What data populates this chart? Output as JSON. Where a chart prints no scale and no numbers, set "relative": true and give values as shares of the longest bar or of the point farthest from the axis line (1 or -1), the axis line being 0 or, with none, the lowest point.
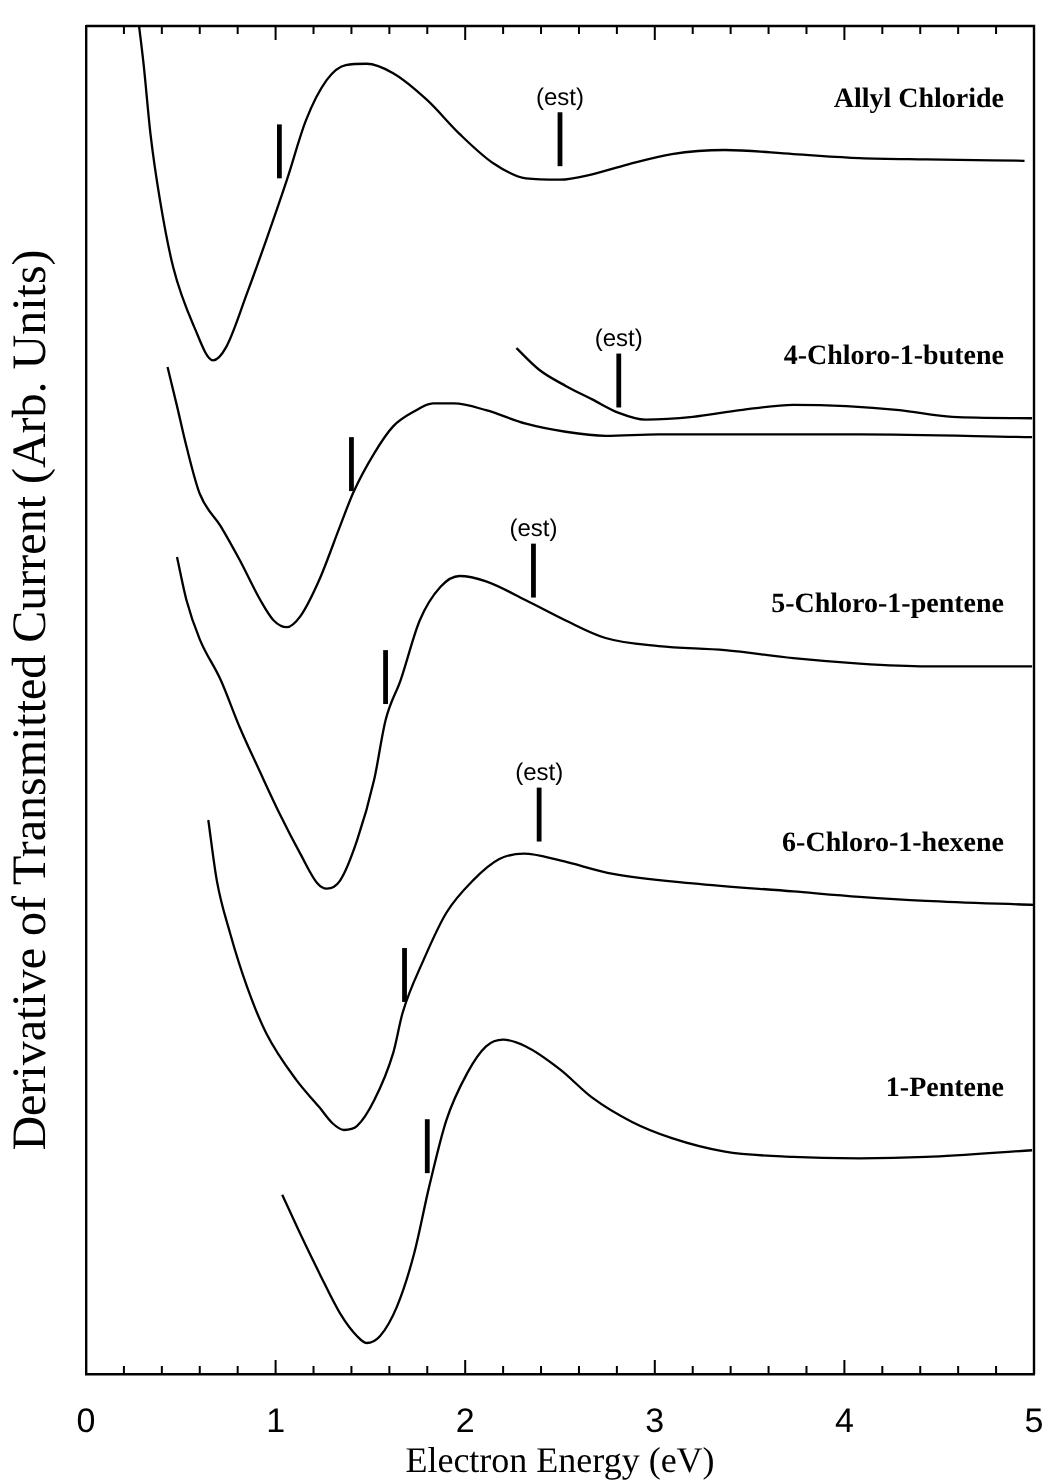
{
  "chart_data": {
    "type": "line",
    "relative": true,
    "xlabel": "Electron Energy (eV)",
    "ylabel": "Derivative of Transmitted Current (Arb. Units)",
    "xlim": [
      0,
      5
    ],
    "xticks": [
      0,
      {
        "value": 0.2,
        "label": null
      },
      {
        "value": 0.4,
        "label": null
      },
      {
        "value": 0.6,
        "label": null
      },
      {
        "value": 0.8,
        "label": null
      },
      1,
      {
        "value": 1.2,
        "label": null
      },
      {
        "value": 1.4,
        "label": null
      },
      {
        "value": 1.6,
        "label": null
      },
      {
        "value": 1.8,
        "label": null
      },
      2,
      {
        "value": 2.2,
        "label": null
      },
      {
        "value": 2.4,
        "label": null
      },
      {
        "value": 2.6,
        "label": null
      },
      {
        "value": 2.8,
        "label": null
      },
      3,
      {
        "value": 3.2,
        "label": null
      },
      {
        "value": 3.4,
        "label": null
      },
      {
        "value": 3.6,
        "label": null
      },
      {
        "value": 3.8,
        "label": null
      },
      4,
      {
        "value": 4.2,
        "label": null
      },
      {
        "value": 4.4,
        "label": null
      },
      {
        "value": 4.6,
        "label": null
      },
      {
        "value": 4.8,
        "label": null
      },
      5
    ],
    "series": [
      {
        "name": "Allyl Chloride",
        "color": "#000000",
        "x": [
          0.28,
          0.305,
          0.34,
          0.39,
          0.46,
          0.57,
          0.67,
          0.74,
          0.85,
          0.95,
          1.06,
          1.16,
          1.27,
          1.37,
          1.48,
          1.62,
          1.8,
          1.97,
          2.15,
          2.32,
          2.5,
          2.67,
          2.85,
          3.09,
          3.37,
          3.73,
          4.08,
          4.43,
          4.95
        ],
        "values": [
          1.0,
          0.97,
          0.92,
          0.871,
          0.821,
          0.777,
          0.752,
          0.762,
          0.802,
          0.841,
          0.886,
          0.93,
          0.96,
          0.971,
          0.972,
          0.965,
          0.945,
          0.92,
          0.898,
          0.887,
          0.886,
          0.89,
          0.897,
          0.905,
          0.908,
          0.905,
          0.902,
          0.901,
          0.9
        ]
      },
      {
        "name": "4-Chloro-1-butene",
        "color": "#000000",
        "x": [
          0.43,
          0.48,
          0.53,
          0.6,
          0.71,
          0.81,
          0.92,
          0.99,
          1.06,
          1.13,
          1.23,
          1.34,
          1.41,
          1.52,
          1.62,
          1.73,
          1.83,
          1.94,
          2.11,
          2.32,
          2.53,
          2.74,
          3.02,
          3.37,
          4.08,
          4.99
        ],
        "values": [
          0.747,
          0.718,
          0.688,
          0.653,
          0.629,
          0.604,
          0.574,
          0.559,
          0.554,
          0.562,
          0.589,
          0.629,
          0.654,
          0.683,
          0.703,
          0.714,
          0.72,
          0.72,
          0.715,
          0.705,
          0.699,
          0.696,
          0.697,
          0.697,
          0.697,
          0.695
        ]
      },
      {
        "color": "#000000",
        "x": [
          2.27,
          2.39,
          2.53,
          2.67,
          2.81,
          2.95,
          3.2,
          3.45,
          3.73,
          4.01,
          4.29,
          4.57,
          4.99
        ],
        "values": [
          0.761,
          0.745,
          0.733,
          0.723,
          0.713,
          0.708,
          0.71,
          0.715,
          0.719,
          0.718,
          0.715,
          0.71,
          0.709
        ]
      },
      {
        "name": "5-Chloro-1-pentene",
        "color": "#000000",
        "x": [
          0.48,
          0.53,
          0.6,
          0.71,
          0.81,
          0.92,
          1.02,
          1.13,
          1.22,
          1.27,
          1.34,
          1.43,
          1.52,
          1.58,
          1.66,
          1.76,
          1.87,
          1.97,
          2.11,
          2.32,
          2.53,
          2.74,
          3.02,
          3.37,
          3.73,
          4.08,
          4.43,
          4.99
        ],
        "values": [
          0.606,
          0.574,
          0.545,
          0.515,
          0.48,
          0.446,
          0.416,
          0.386,
          0.364,
          0.36,
          0.366,
          0.396,
          0.441,
          0.485,
          0.515,
          0.559,
          0.584,
          0.592,
          0.588,
          0.574,
          0.559,
          0.546,
          0.54,
          0.537,
          0.531,
          0.527,
          0.525,
          0.525
        ]
      },
      {
        "name": "6-Chloro-1-hexene",
        "color": "#000000",
        "x": [
          0.645,
          0.69,
          0.76,
          0.85,
          0.95,
          1.11,
          1.23,
          1.3,
          1.36,
          1.43,
          1.52,
          1.62,
          1.67,
          1.78,
          1.9,
          2.04,
          2.18,
          2.31,
          2.5,
          2.78,
          3.2,
          3.73,
          4.08,
          4.43,
          5.0
        ],
        "values": [
          0.411,
          0.366,
          0.327,
          0.287,
          0.253,
          0.218,
          0.198,
          0.186,
          0.181,
          0.184,
          0.203,
          0.238,
          0.268,
          0.307,
          0.342,
          0.366,
          0.382,
          0.386,
          0.381,
          0.371,
          0.364,
          0.358,
          0.354,
          0.351,
          0.348
        ]
      },
      {
        "name": "1-Pentene",
        "color": "#000000",
        "x": [
          1.035,
          1.13,
          1.23,
          1.34,
          1.43,
          1.48,
          1.55,
          1.64,
          1.73,
          1.81,
          1.9,
          2.01,
          2.11,
          2.2,
          2.32,
          2.5,
          2.67,
          2.88,
          3.09,
          3.37,
          3.73,
          4.08,
          4.43,
          4.99
        ],
        "values": [
          0.133,
          0.104,
          0.075,
          0.045,
          0.028,
          0.023,
          0.028,
          0.05,
          0.089,
          0.139,
          0.188,
          0.223,
          0.243,
          0.248,
          0.243,
          0.226,
          0.205,
          0.187,
          0.175,
          0.165,
          0.161,
          0.16,
          0.161,
          0.166
        ]
      },
      {
        "color": "#000000",
        "x": [
          1.02,
          1.02
        ],
        "values": [
          0.887,
          0.927
        ]
      },
      {
        "color": "#000000",
        "x": [
          2.5,
          2.5
        ],
        "values": [
          0.896,
          0.936
        ]
      },
      {
        "color": "#000000",
        "x": [
          1.4,
          1.4
        ],
        "values": [
          0.655,
          0.695
        ]
      },
      {
        "color": "#000000",
        "x": [
          2.81,
          2.81
        ],
        "values": [
          0.717,
          0.757
        ]
      },
      {
        "color": "#000000",
        "x": [
          1.58,
          1.58
        ],
        "values": [
          0.497,
          0.537
        ]
      },
      {
        "color": "#000000",
        "x": [
          2.36,
          2.36
        ],
        "values": [
          0.576,
          0.616
        ]
      },
      {
        "color": "#000000",
        "x": [
          1.68,
          1.68
        ],
        "values": [
          0.276,
          0.316
        ]
      },
      {
        "color": "#000000",
        "x": [
          2.39,
          2.39
        ],
        "values": [
          0.395,
          0.435
        ]
      },
      {
        "color": "#000000",
        "x": [
          1.8,
          1.8
        ],
        "values": [
          0.149,
          0.189
        ]
      }
    ],
    "annotations": [
      {
        "text": "(est)",
        "x": 2.5,
        "y": 0.936
      },
      {
        "text": "(est)",
        "x": 2.81,
        "y": 0.757
      },
      {
        "text": "(est)",
        "x": 2.36,
        "y": 0.616
      },
      {
        "text": "(est)",
        "x": 2.39,
        "y": 0.435
      }
    ]
  }
}
